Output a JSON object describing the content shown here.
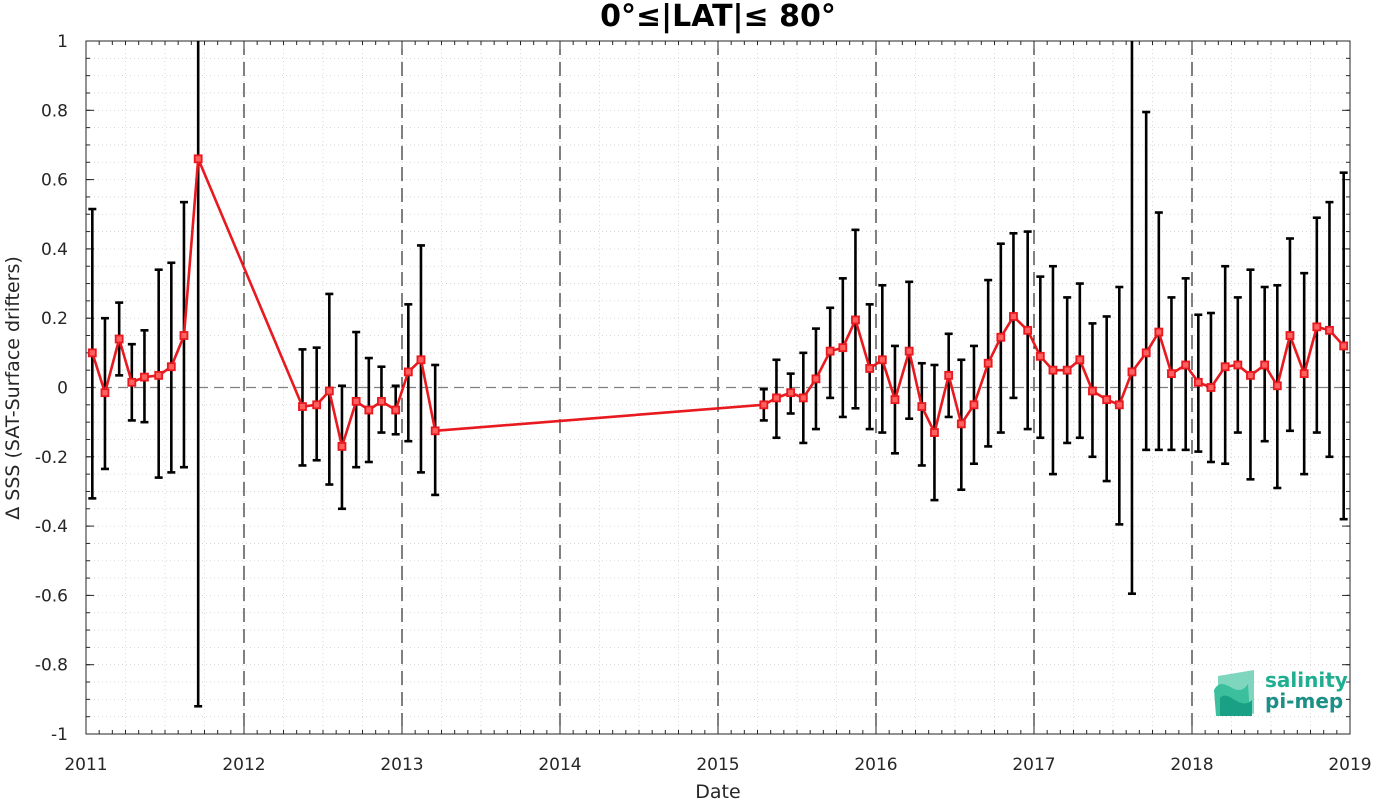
{
  "chart_data": {
    "type": "line",
    "title": "0°≤|LAT|≤ 80°",
    "xlabel": "Date",
    "ylabel": "Δ SSS (SAT-Surface drifters)",
    "xlim": [
      2011,
      2019
    ],
    "ylim": [
      -1,
      1
    ],
    "x_ticks": [
      "2011",
      "2012",
      "2013",
      "2014",
      "2015",
      "2016",
      "2017",
      "2018",
      "2019"
    ],
    "y_ticks": [
      "1",
      "0.8",
      "0.6",
      "0.4",
      "0.2",
      "0",
      "-0.2",
      "-0.4",
      "-0.6",
      "-0.8",
      "-1"
    ],
    "grid": true,
    "year_separators": "dashed vertical lines at each year",
    "zero_line": "dashed horizontal line at 0",
    "colors": {
      "series": "#e8191f",
      "errorbar": "#000000",
      "marker_fill": "#ff6060"
    },
    "series": [
      {
        "x": [
          2011.04,
          2011.12,
          2011.21,
          2011.29,
          2011.37,
          2011.46,
          2011.54,
          2011.62,
          2011.71,
          2012.37,
          2012.46,
          2012.54,
          2012.62,
          2012.71,
          2012.79,
          2012.87,
          2012.96,
          2013.04,
          2013.12,
          2013.21,
          2015.29,
          2015.37,
          2015.46,
          2015.54,
          2015.62,
          2015.71,
          2015.79,
          2015.87,
          2015.96,
          2016.04,
          2016.12,
          2016.21,
          2016.29,
          2016.37,
          2016.46,
          2016.54,
          2016.62,
          2016.71,
          2016.79,
          2016.87,
          2016.96,
          2017.04,
          2017.12,
          2017.21,
          2017.29,
          2017.37,
          2017.46,
          2017.54,
          2017.62,
          2017.71,
          2017.79,
          2017.87,
          2017.96,
          2018.04,
          2018.12,
          2018.21,
          2018.29,
          2018.37,
          2018.46,
          2018.54,
          2018.62,
          2018.71,
          2018.79,
          2018.87,
          2018.96
        ],
        "y": [
          0.1,
          -0.015,
          0.14,
          0.015,
          0.03,
          0.035,
          0.06,
          0.15,
          0.66,
          -0.055,
          -0.05,
          -0.01,
          -0.17,
          -0.04,
          -0.065,
          -0.04,
          -0.065,
          0.045,
          0.08,
          -0.125,
          -0.05,
          -0.03,
          -0.015,
          -0.03,
          0.025,
          0.105,
          0.115,
          0.195,
          0.055,
          0.08,
          -0.035,
          0.105,
          -0.055,
          -0.13,
          0.035,
          -0.105,
          -0.05,
          0.07,
          0.145,
          0.205,
          0.165,
          0.09,
          0.05,
          0.05,
          0.08,
          -0.01,
          -0.035,
          -0.05,
          0.045,
          0.1,
          0.16,
          0.04,
          0.065,
          0.015,
          0.0,
          0.06,
          0.065,
          0.035,
          0.065,
          0.005,
          0.15,
          0.04,
          0.175,
          0.165,
          0.12
        ],
        "err_low": [
          -0.32,
          -0.235,
          0.035,
          -0.095,
          -0.1,
          -0.26,
          -0.245,
          -0.23,
          -0.92,
          -0.225,
          -0.21,
          -0.28,
          -0.35,
          -0.23,
          -0.215,
          -0.13,
          -0.135,
          -0.155,
          -0.245,
          -0.31,
          -0.095,
          -0.145,
          -0.075,
          -0.16,
          -0.12,
          -0.03,
          -0.085,
          -0.06,
          -0.12,
          -0.13,
          -0.19,
          -0.09,
          -0.225,
          -0.325,
          -0.085,
          -0.295,
          -0.22,
          -0.17,
          -0.13,
          -0.03,
          -0.12,
          -0.145,
          -0.25,
          -0.16,
          -0.145,
          -0.2,
          -0.27,
          -0.395,
          -0.595,
          -0.18,
          -0.18,
          -0.18,
          -0.18,
          -0.185,
          -0.215,
          -0.22,
          -0.13,
          -0.265,
          -0.155,
          -0.29,
          -0.125,
          -0.25,
          -0.13,
          -0.2,
          -0.38
        ],
        "err_high": [
          0.515,
          0.2,
          0.245,
          0.125,
          0.165,
          0.34,
          0.36,
          0.535,
          1.0,
          0.11,
          0.115,
          0.27,
          0.005,
          0.16,
          0.085,
          0.06,
          0.005,
          0.24,
          0.41,
          0.065,
          -0.005,
          0.08,
          0.04,
          0.1,
          0.17,
          0.23,
          0.315,
          0.455,
          0.24,
          0.295,
          0.12,
          0.305,
          0.07,
          0.065,
          0.155,
          0.08,
          0.12,
          0.31,
          0.415,
          0.445,
          0.45,
          0.32,
          0.35,
          0.26,
          0.3,
          0.185,
          0.205,
          0.29,
          1.0,
          0.795,
          0.505,
          0.26,
          0.315,
          0.21,
          0.215,
          0.35,
          0.26,
          0.34,
          0.29,
          0.295,
          0.43,
          0.33,
          0.49,
          0.535,
          0.62
        ]
      }
    ],
    "logo": {
      "line1": "salinity",
      "line2": "pi-mep"
    }
  }
}
